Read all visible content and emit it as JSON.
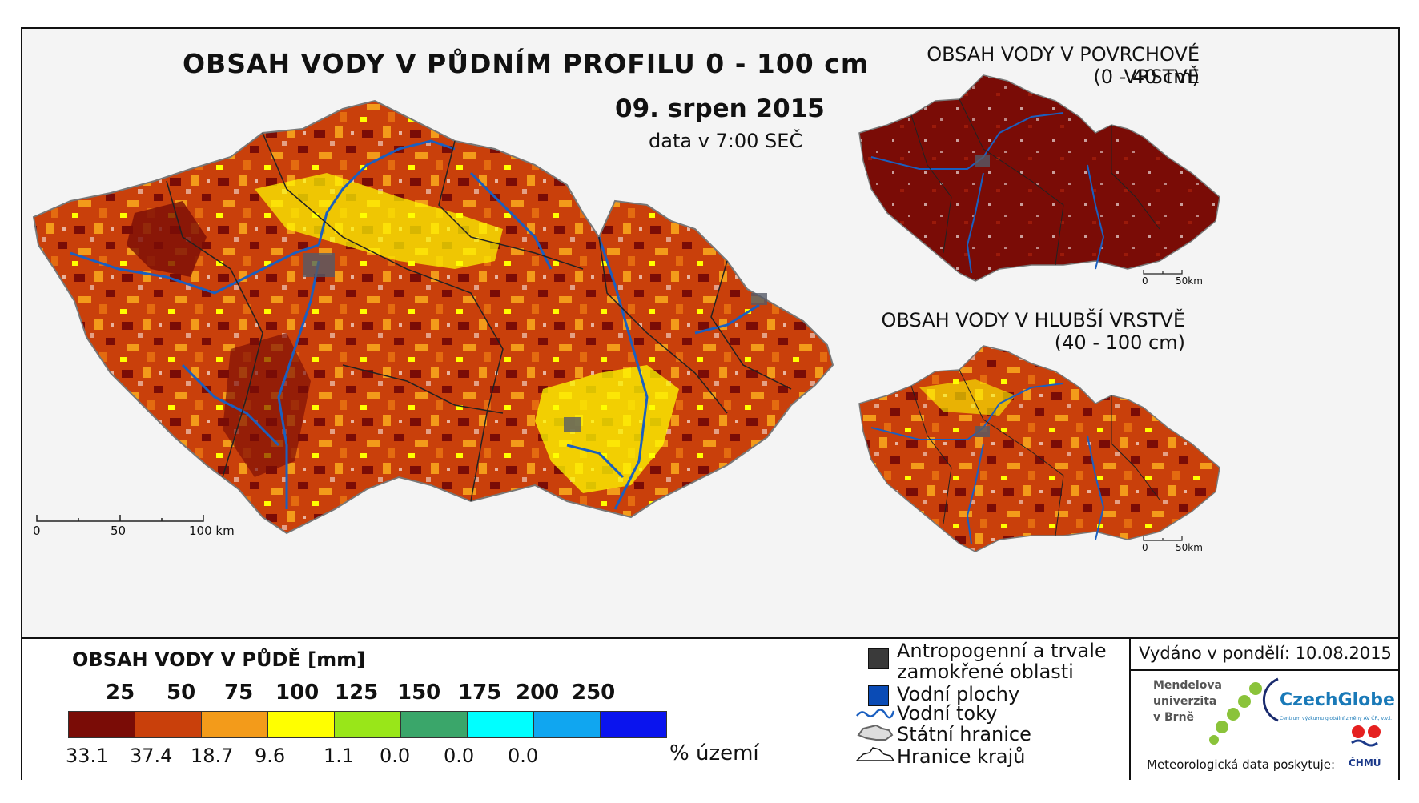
{
  "header": {
    "title": "OBSAH VODY V PŮDNÍM PROFILU 0 - 100 cm",
    "date": "09. srpen 2015",
    "time": "data v 7:00 SEČ"
  },
  "insets": {
    "surface": {
      "title": "OBSAH VODY V POVRCHOVÉ VRSTVĚ",
      "range": "(0 - 40 cm)"
    },
    "deep": {
      "title": "OBSAH VODY V HLUBŠÍ VRSTVĚ",
      "range": "(40 - 100 cm)"
    },
    "scale": {
      "zero": "0",
      "end": "50km"
    }
  },
  "main_scale": {
    "zero": "0",
    "mid": "50",
    "end": "100 km"
  },
  "legend": {
    "title": "OBSAH VODY V PŮDĚ [mm]",
    "thresholds": [
      "25",
      "50",
      "75",
      "100",
      "125",
      "150",
      "175",
      "200",
      "250"
    ],
    "classes": [
      {
        "color": "#7a0c06",
        "percent": "33.1"
      },
      {
        "color": "#c9400b",
        "percent": "37.4"
      },
      {
        "color": "#f39b1a",
        "percent": "18.7"
      },
      {
        "color": "#ffff00",
        "percent": "9.6"
      },
      {
        "color": "#99e619",
        "percent": "1.1"
      },
      {
        "color": "#3aa66a",
        "percent": "0.0"
      },
      {
        "color": "#00ffff",
        "percent": "0.0"
      },
      {
        "color": "#10a6f0",
        "percent": "0.0"
      },
      {
        "color": "#0a14ee",
        "percent": ""
      }
    ],
    "unit": "% území"
  },
  "symbols": {
    "antropo": "Antropogenní a trvale",
    "antropo2": "zamokřené oblasti",
    "water_areas": "Vodní plochy",
    "rivers": "Vodní toky",
    "state_border": "Státní hranice",
    "region_border": "Hranice krajů"
  },
  "footer": {
    "issued": "Vydáno v pondělí: 10.08.2015",
    "mendel": [
      "Mendelova",
      "univerzita",
      "v Brně"
    ],
    "czechglobe": "CzechGlobe",
    "czechglobe_sub": "Centrum výzkumu globální změny AV ČR, v.v.i.",
    "meteo": "Meteorologická data poskytuje:",
    "chmu": "ČHMÚ"
  },
  "colors": {
    "river": "#1a5fc0",
    "region_border": "#222222",
    "city": "#555a66"
  }
}
